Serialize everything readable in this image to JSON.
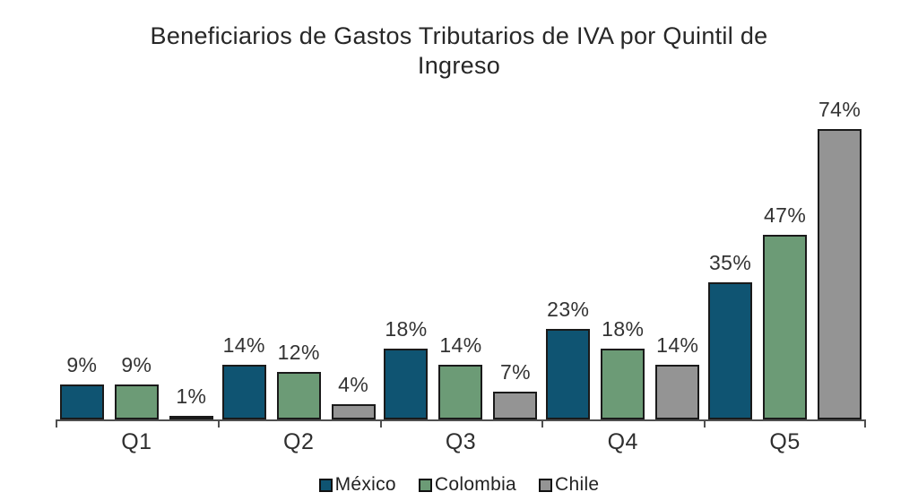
{
  "chart_data": {
    "type": "bar",
    "title": "Beneficiarios de Gastos Tributarios de IVA por Quintil de Ingreso",
    "categories": [
      "Q1",
      "Q2",
      "Q3",
      "Q4",
      "Q5"
    ],
    "series": [
      {
        "name": "México",
        "color": "#0F5472",
        "values": [
          9,
          14,
          18,
          23,
          35
        ]
      },
      {
        "name": "Colombia",
        "color": "#6C9B76",
        "values": [
          9,
          12,
          14,
          18,
          47
        ]
      },
      {
        "name": "Chile",
        "color": "#949494",
        "values": [
          1,
          4,
          7,
          14,
          74
        ]
      }
    ],
    "value_suffix": "%",
    "xlabel": "",
    "ylabel": "",
    "ylim": [
      0,
      78
    ],
    "grid": false,
    "legend_position": "bottom",
    "data_labels": true
  },
  "legend": {
    "items": [
      {
        "label": "México",
        "color": "#0F5472"
      },
      {
        "label": "Colombia",
        "color": "#6C9B76"
      },
      {
        "label": "Chile",
        "color": "#949494"
      }
    ]
  },
  "colors": {
    "mexico_bar": "#0F5472",
    "colombia_bar": "#6C9B76",
    "chile_bar": "#949494",
    "bar_outline": "#1A1A1A",
    "axis": "#4F4F4F",
    "title_text": "#272727",
    "label_text": "#333333"
  }
}
